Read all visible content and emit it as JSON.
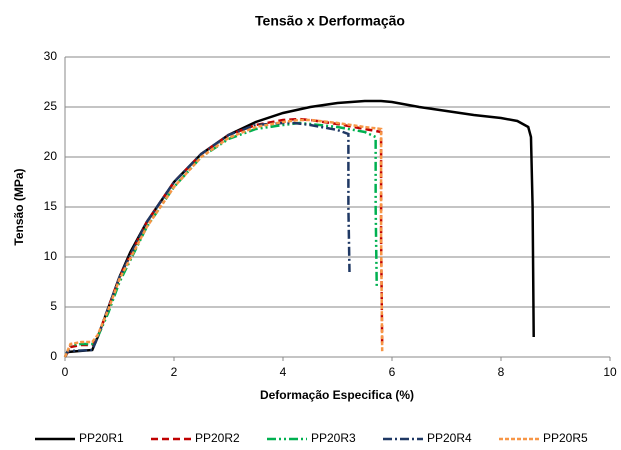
{
  "chart_data": {
    "type": "line",
    "title": "Tensão x Derformação",
    "x_label": "Deformação Especifica (%)",
    "y_label": "Tensão (MPa)",
    "xlim": [
      0,
      10
    ],
    "xticks": [
      0,
      2,
      4,
      6,
      8,
      10
    ],
    "ylim": [
      0,
      30
    ],
    "yticks": [
      0,
      5,
      10,
      15,
      20,
      25,
      30
    ],
    "grid": true,
    "legend": "bottom",
    "series": [
      {
        "name": "PP20R1",
        "color": "#000000",
        "dash": "none",
        "x": [
          0,
          0.05,
          0.5,
          0.6,
          0.8,
          1,
          1.2,
          1.5,
          2,
          2.5,
          3,
          3.5,
          4,
          4.5,
          5,
          5.5,
          5.8,
          6,
          6.5,
          7,
          7.5,
          8,
          8.3,
          8.5,
          8.55,
          8.58,
          8.6
        ],
        "values": [
          0,
          0.5,
          0.7,
          2,
          5,
          8,
          10.5,
          13.5,
          17.5,
          20.3,
          22.2,
          23.5,
          24.4,
          25,
          25.4,
          25.6,
          25.6,
          25.5,
          25,
          24.6,
          24.2,
          23.9,
          23.6,
          23,
          22,
          15,
          2
        ]
      },
      {
        "name": "PP20R2",
        "color": "#c00000",
        "dash": "7,4",
        "x": [
          0,
          0.1,
          0.3,
          0.5,
          0.6,
          0.8,
          1,
          1.5,
          2,
          2.5,
          3,
          3.5,
          4,
          4.3,
          4.5,
          5,
          5.5,
          5.8,
          5.8,
          5.82
        ],
        "values": [
          0,
          1,
          1.2,
          1.2,
          2,
          5,
          8,
          13.5,
          17.5,
          20.3,
          22.2,
          23.2,
          23.7,
          23.8,
          23.7,
          23.3,
          22.8,
          22.5,
          12,
          1
        ]
      },
      {
        "name": "PP20R3",
        "color": "#00b050",
        "dash": "9,3,2,3,2,3",
        "x": [
          0,
          0.1,
          0.3,
          0.5,
          0.6,
          0.8,
          1,
          1.5,
          2,
          2.5,
          3,
          3.5,
          4,
          4.3,
          4.5,
          5,
          5.5,
          5.7,
          5.7,
          5.72
        ],
        "values": [
          0,
          1.2,
          1.3,
          1.3,
          2,
          4.5,
          7.5,
          13,
          17,
          20,
          21.8,
          22.8,
          23.2,
          23.4,
          23.3,
          23,
          22.5,
          22,
          15,
          7
        ]
      },
      {
        "name": "PP20R4",
        "color": "#1f3864",
        "dash": "9,3,2,3",
        "x": [
          0,
          0.05,
          0.5,
          0.6,
          0.8,
          1,
          1.5,
          2,
          2.5,
          3,
          3.5,
          4,
          4.2,
          4.5,
          5,
          5.2,
          5.2,
          5.22
        ],
        "values": [
          0,
          0.6,
          0.7,
          2,
          5,
          8,
          13.5,
          17.5,
          20.3,
          22.2,
          23.2,
          23.4,
          23.4,
          23.2,
          22.7,
          22.3,
          15,
          8.5
        ]
      },
      {
        "name": "PP20R5",
        "color": "#f79646",
        "dash": "4,2",
        "x": [
          0,
          0.1,
          0.3,
          0.5,
          0.6,
          0.8,
          1,
          1.5,
          2,
          2.5,
          3,
          3.5,
          4,
          4.3,
          4.5,
          5,
          5.5,
          5.8,
          5.8,
          5.82
        ],
        "values": [
          0,
          1.3,
          1.5,
          1.5,
          2.2,
          4.8,
          7.8,
          13,
          17,
          20,
          21.9,
          23,
          23.5,
          23.7,
          23.7,
          23.4,
          23,
          22.8,
          12,
          0.5
        ]
      }
    ]
  }
}
